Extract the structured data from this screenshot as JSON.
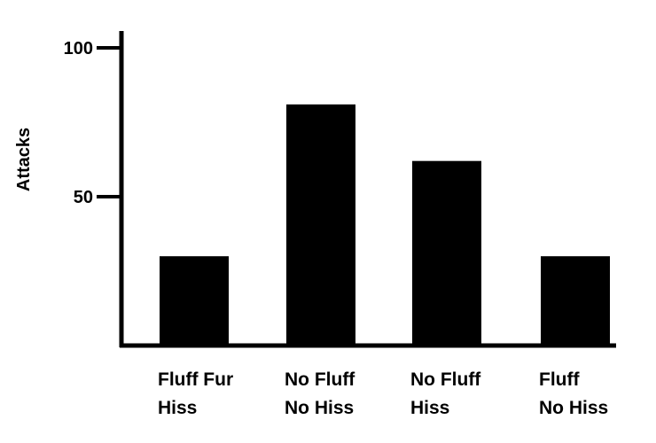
{
  "chart_data": {
    "type": "bar",
    "title": "",
    "xlabel": "",
    "ylabel": "Attacks",
    "ylim": [
      0,
      112
    ],
    "y_ticks": [
      {
        "value": 50,
        "label": "50"
      },
      {
        "value": 100,
        "label": "100"
      }
    ],
    "categories": [
      {
        "line1": "Fluff Fur",
        "line2": "Hiss"
      },
      {
        "line1": "No Fluff",
        "line2": "No Hiss"
      },
      {
        "line1": "No Fluff",
        "line2": "Hiss"
      },
      {
        "line1": "Fluff",
        "line2": "No Hiss"
      }
    ],
    "values": [
      30,
      81,
      62,
      30
    ],
    "bar_color": "#000000",
    "axis_color": "#000000",
    "grid": false,
    "legend": "none"
  }
}
